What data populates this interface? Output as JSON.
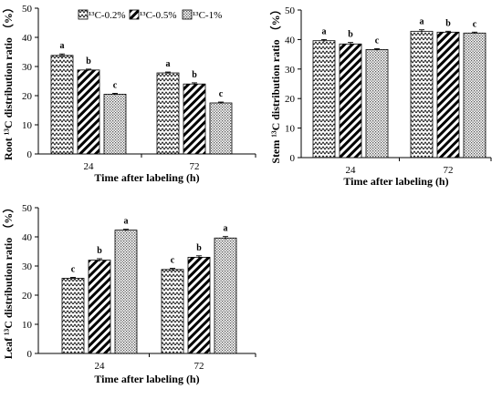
{
  "legend": {
    "items": [
      {
        "label": "¹³C-0.2%",
        "pattern": "pat-zigzag"
      },
      {
        "label": "¹³C-0.5%",
        "pattern": "pat-diag"
      },
      {
        "label": "¹³C-1%",
        "pattern": "pat-dots"
      }
    ]
  },
  "chart_data": [
    {
      "type": "bar",
      "panel": "root",
      "ylabel": "Root ¹³C distribution ratio （%）",
      "xlabel": "Time after labeling (h)",
      "categories": [
        "24",
        "72"
      ],
      "ylim": [
        0,
        50
      ],
      "yticks": [
        0,
        10,
        20,
        30,
        40,
        50
      ],
      "series": [
        {
          "name": "¹³C-0.2%",
          "values": [
            33.8,
            27.8
          ],
          "errors": [
            0.5,
            0.3
          ],
          "letters": [
            "a",
            "a"
          ]
        },
        {
          "name": "¹³C-0.5%",
          "values": [
            28.8,
            24.0
          ],
          "errors": [
            0.3,
            0.4
          ],
          "letters": [
            "b",
            "b"
          ]
        },
        {
          "name": "¹³C-1%",
          "values": [
            20.5,
            17.5
          ],
          "errors": [
            0.3,
            0.3
          ],
          "letters": [
            "c",
            "c"
          ]
        }
      ]
    },
    {
      "type": "bar",
      "panel": "stem",
      "ylabel": "Stem ¹³C distribution ratio （%）",
      "xlabel": "Time after labeling (h)",
      "categories": [
        "24",
        "72"
      ],
      "ylim": [
        0,
        50
      ],
      "yticks": [
        0,
        10,
        20,
        30,
        40,
        50
      ],
      "series": [
        {
          "name": "¹³C-0.2%",
          "values": [
            39.6,
            42.8
          ],
          "errors": [
            0.4,
            0.5
          ],
          "letters": [
            "a",
            "a"
          ]
        },
        {
          "name": "¹³C-0.5%",
          "values": [
            38.5,
            42.5
          ],
          "errors": [
            0.5,
            0.3
          ],
          "letters": [
            "b",
            "b"
          ]
        },
        {
          "name": "¹³C-1%",
          "values": [
            36.6,
            42.2
          ],
          "errors": [
            0.3,
            0.3
          ],
          "letters": [
            "c",
            "c"
          ]
        }
      ]
    },
    {
      "type": "bar",
      "panel": "leaf",
      "ylabel": "Leaf ¹³C distribution ratio （%）",
      "xlabel": "Time after labeling (h)",
      "categories": [
        "24",
        "72"
      ],
      "ylim": [
        0,
        50
      ],
      "yticks": [
        0,
        10,
        20,
        30,
        40,
        50
      ],
      "series": [
        {
          "name": "¹³C-0.2%",
          "values": [
            25.8,
            28.8
          ],
          "errors": [
            0.3,
            0.4
          ],
          "letters": [
            "c",
            "c"
          ]
        },
        {
          "name": "¹³C-0.5%",
          "values": [
            32.0,
            33.0
          ],
          "errors": [
            0.5,
            0.5
          ],
          "letters": [
            "b",
            "b"
          ]
        },
        {
          "name": "¹³C-1%",
          "values": [
            42.3,
            39.6
          ],
          "errors": [
            0.3,
            0.5
          ],
          "letters": [
            "a",
            "a"
          ]
        }
      ]
    }
  ]
}
